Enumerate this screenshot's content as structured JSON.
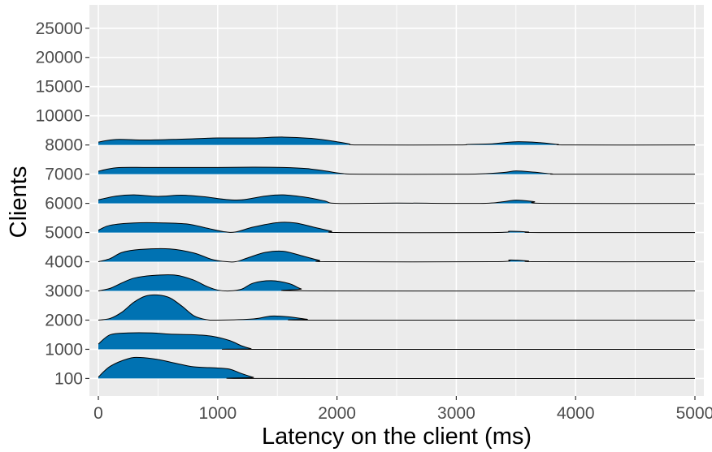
{
  "chart_data": {
    "type": "ridgeline",
    "xlabel": "Latency on the client (ms)",
    "ylabel": "Clients",
    "xlim": [
      -75,
      5075
    ],
    "ylim": [
      -50,
      25700
    ],
    "x_ticks": [
      0,
      1000,
      2000,
      3000,
      4000,
      5000
    ],
    "y_ticks": [
      100,
      1000,
      2000,
      3000,
      4000,
      5000,
      6000,
      7000,
      8000,
      10000,
      15000,
      20000,
      25000
    ],
    "y_tick_labels": [
      "100",
      "1000",
      "2000",
      "3000",
      "4000",
      "5000",
      "6000",
      "7000",
      "8000",
      "10000",
      "15000",
      "20000",
      "25000"
    ],
    "x_tick_labels": [
      "0",
      "1000",
      "2000",
      "3000",
      "4000",
      "5000"
    ],
    "grid": true,
    "fill_color": "#0072B2",
    "panel_color": "#EBEBEB",
    "series": [
      {
        "name": "100",
        "baseline": 100,
        "points": [
          [
            0,
            50
          ],
          [
            100,
            420
          ],
          [
            250,
            680
          ],
          [
            350,
            720
          ],
          [
            500,
            650
          ],
          [
            650,
            520
          ],
          [
            800,
            400
          ],
          [
            1000,
            360
          ],
          [
            1100,
            320
          ],
          [
            1200,
            170
          ],
          [
            1300,
            40
          ],
          [
            1360,
            0
          ],
          [
            5000,
            0
          ]
        ]
      },
      {
        "name": "1000",
        "baseline": 1000,
        "points": [
          [
            0,
            180
          ],
          [
            100,
            500
          ],
          [
            250,
            560
          ],
          [
            450,
            560
          ],
          [
            600,
            520
          ],
          [
            800,
            500
          ],
          [
            950,
            450
          ],
          [
            1100,
            300
          ],
          [
            1200,
            120
          ],
          [
            1280,
            20
          ],
          [
            1320,
            0
          ],
          [
            5000,
            0
          ]
        ]
      },
      {
        "name": "2000",
        "baseline": 2000,
        "points": [
          [
            0,
            0
          ],
          [
            100,
            60
          ],
          [
            200,
            280
          ],
          [
            300,
            620
          ],
          [
            400,
            830
          ],
          [
            500,
            860
          ],
          [
            600,
            760
          ],
          [
            700,
            480
          ],
          [
            800,
            150
          ],
          [
            900,
            20
          ],
          [
            1000,
            0
          ],
          [
            1300,
            40
          ],
          [
            1450,
            140
          ],
          [
            1600,
            110
          ],
          [
            1750,
            30
          ],
          [
            1850,
            0
          ],
          [
            5000,
            0
          ]
        ]
      },
      {
        "name": "3000",
        "baseline": 3000,
        "points": [
          [
            0,
            0
          ],
          [
            100,
            90
          ],
          [
            200,
            280
          ],
          [
            300,
            440
          ],
          [
            450,
            530
          ],
          [
            650,
            540
          ],
          [
            800,
            370
          ],
          [
            900,
            170
          ],
          [
            1000,
            30
          ],
          [
            1100,
            0
          ],
          [
            1200,
            60
          ],
          [
            1300,
            270
          ],
          [
            1450,
            350
          ],
          [
            1600,
            250
          ],
          [
            1700,
            70
          ],
          [
            1800,
            0
          ],
          [
            5000,
            0
          ]
        ]
      },
      {
        "name": "4000",
        "baseline": 4000,
        "points": [
          [
            0,
            0
          ],
          [
            100,
            110
          ],
          [
            200,
            320
          ],
          [
            350,
            420
          ],
          [
            600,
            440
          ],
          [
            800,
            300
          ],
          [
            950,
            80
          ],
          [
            1050,
            10
          ],
          [
            1150,
            0
          ],
          [
            1250,
            130
          ],
          [
            1400,
            320
          ],
          [
            1550,
            360
          ],
          [
            1700,
            210
          ],
          [
            1850,
            50
          ],
          [
            1950,
            0
          ],
          [
            3300,
            0
          ],
          [
            3450,
            60
          ],
          [
            3600,
            30
          ],
          [
            3700,
            0
          ],
          [
            5000,
            0
          ]
        ]
      },
      {
        "name": "5000",
        "baseline": 5000,
        "points": [
          [
            0,
            80
          ],
          [
            100,
            250
          ],
          [
            300,
            330
          ],
          [
            550,
            330
          ],
          [
            750,
            290
          ],
          [
            900,
            160
          ],
          [
            1050,
            30
          ],
          [
            1150,
            20
          ],
          [
            1300,
            190
          ],
          [
            1500,
            340
          ],
          [
            1650,
            330
          ],
          [
            1800,
            190
          ],
          [
            1950,
            50
          ],
          [
            2050,
            0
          ],
          [
            3300,
            0
          ],
          [
            3450,
            45
          ],
          [
            3600,
            20
          ],
          [
            3700,
            0
          ],
          [
            5000,
            0
          ]
        ]
      },
      {
        "name": "6000",
        "baseline": 6000,
        "points": [
          [
            0,
            120
          ],
          [
            150,
            250
          ],
          [
            300,
            290
          ],
          [
            500,
            240
          ],
          [
            700,
            280
          ],
          [
            900,
            220
          ],
          [
            1050,
            140
          ],
          [
            1200,
            120
          ],
          [
            1400,
            250
          ],
          [
            1550,
            290
          ],
          [
            1750,
            200
          ],
          [
            1900,
            80
          ],
          [
            2000,
            0
          ],
          [
            2500,
            10
          ],
          [
            3200,
            0
          ],
          [
            3400,
            60
          ],
          [
            3500,
            110
          ],
          [
            3650,
            60
          ],
          [
            3750,
            0
          ],
          [
            5000,
            0
          ]
        ]
      },
      {
        "name": "7000",
        "baseline": 7000,
        "points": [
          [
            0,
            100
          ],
          [
            150,
            220
          ],
          [
            400,
            230
          ],
          [
            700,
            230
          ],
          [
            1000,
            230
          ],
          [
            1300,
            240
          ],
          [
            1550,
            230
          ],
          [
            1750,
            190
          ],
          [
            1900,
            110
          ],
          [
            2050,
            20
          ],
          [
            2200,
            0
          ],
          [
            3000,
            0
          ],
          [
            3200,
            10
          ],
          [
            3400,
            60
          ],
          [
            3500,
            110
          ],
          [
            3650,
            70
          ],
          [
            3800,
            10
          ],
          [
            3900,
            0
          ],
          [
            5000,
            0
          ]
        ]
      },
      {
        "name": "8000",
        "baseline": 8000,
        "points": [
          [
            0,
            100
          ],
          [
            150,
            190
          ],
          [
            400,
            170
          ],
          [
            700,
            200
          ],
          [
            1000,
            240
          ],
          [
            1300,
            240
          ],
          [
            1550,
            270
          ],
          [
            1800,
            220
          ],
          [
            2000,
            110
          ],
          [
            2100,
            40
          ],
          [
            2200,
            0
          ],
          [
            3000,
            0
          ],
          [
            3100,
            20
          ],
          [
            3300,
            40
          ],
          [
            3500,
            110
          ],
          [
            3700,
            80
          ],
          [
            3850,
            20
          ],
          [
            3950,
            0
          ],
          [
            5000,
            0
          ]
        ]
      }
    ]
  }
}
